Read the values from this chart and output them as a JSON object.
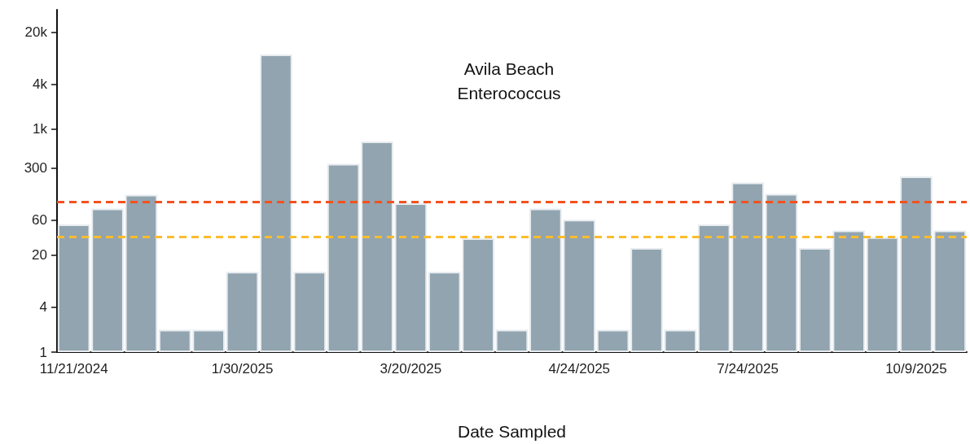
{
  "chart_data": {
    "type": "bar",
    "title": "Avila Beach\nEnterococcus",
    "xlabel": "Date Sampled",
    "categories": [
      "11/21/2024",
      null,
      null,
      null,
      null,
      "1/30/2025",
      null,
      null,
      null,
      null,
      "3/20/2025",
      null,
      null,
      null,
      null,
      "4/24/2025",
      null,
      null,
      null,
      null,
      "7/24/2025",
      null,
      null,
      null,
      null,
      "10/9/2025",
      null
    ],
    "values": [
      52,
      85,
      130,
      2,
      2,
      12,
      10000,
      12,
      340,
      680,
      100,
      12,
      34,
      2,
      85,
      60,
      2,
      25,
      2,
      52,
      190,
      134,
      25,
      43,
      35,
      230,
      43
    ],
    "color": "#91a4b0",
    "log": "y",
    "ylim": [
      1,
      40000
    ],
    "yticks": [
      1,
      4,
      20,
      60,
      300,
      {
        "value": 1000,
        "label": "1k"
      },
      {
        "value": 4000,
        "label": "4k"
      },
      {
        "value": 20000,
        "label": "20k"
      }
    ],
    "ref_lines": [
      {
        "axis": "y",
        "value": 104,
        "label": null,
        "color": "#f4511e",
        "line_style": "dashed"
      },
      {
        "axis": "y",
        "value": 35,
        "label": null,
        "color": "#fbbc2c",
        "line_style": "dashed"
      }
    ],
    "grid": false
  }
}
